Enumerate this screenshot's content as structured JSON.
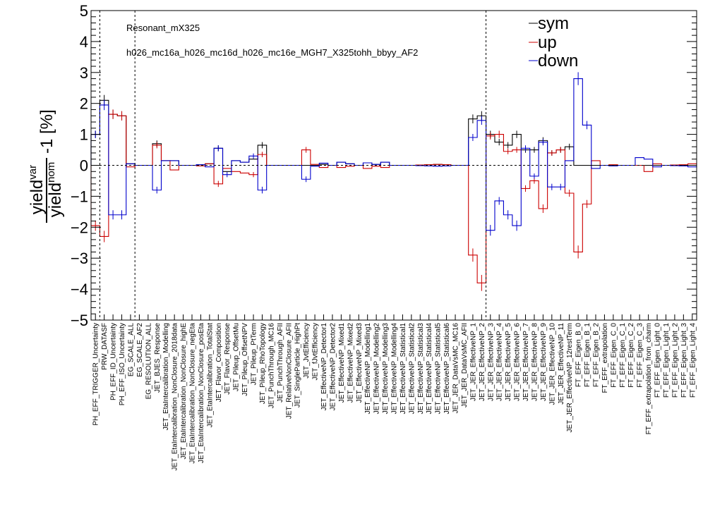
{
  "chart_data": {
    "type": "bar",
    "annotations": [
      "Resonant_mX325",
      "h026_mc16a_h026_mc16d_h026_mc16e_MGH7_X325tohh_bbyy_AF2"
    ],
    "ylabel_parts": {
      "num": "yield",
      "num_sup": "var",
      "den": "yield",
      "den_sup": "nom",
      "suffix": "-1 [%]"
    },
    "ylim": [
      -5,
      5
    ],
    "yticks": [
      "5",
      "4",
      "3",
      "2",
      "1",
      "0",
      "−1",
      "−2",
      "−3",
      "−4",
      "−5"
    ],
    "legend": {
      "position": "top-right",
      "entries": [
        {
          "label": "sym",
          "color": "#000000"
        },
        {
          "label": "up",
          "color": "#cc0000"
        },
        {
          "label": "down",
          "color": "#0000cc"
        }
      ]
    },
    "separators_after_index": [
      0,
      4,
      44
    ],
    "categories": [
      "PH_EFF_TRIGGER_Uncertainty",
      "PRW_DATASF",
      "PH_EFF_ID_Uncertainty",
      "PH_EFF_ISO_Uncertainty",
      "EG_SCALE_ALL",
      "EG_SCALE_AF2",
      "EG_RESOLUTION_ALL",
      "JET_BJES_Response",
      "JET_EtaIntercalibration_Modelling",
      "JET_EtaIntercalibration_NonClosure_2018data",
      "JET_EtaIntercalibration_NonClosure_highE",
      "JET_EtaIntercalibration_NonClosure_negEta",
      "JET_EtaIntercalibration_NonClosure_posEta",
      "JET_EtaIntercalibration_TotalStat",
      "JET_Flavor_Composition",
      "JET_Flavor_Response",
      "JET_Pileup_OffsetMu",
      "JET_Pileup_OffsetNPV",
      "JET_Pileup_PtTerm",
      "JET_Pileup_RhoTopology",
      "JET_PunchThrough_MC16",
      "JET_PunchThrough_AFII",
      "JET_RelativeNonClosure_AFII",
      "JET_SingleParticle_HighPt",
      "JET_JvtEfficiency",
      "JET_fJvtEfficiency",
      "JET_EffectiveNP_Detector1",
      "JET_EffectiveNP_Detector2",
      "JET_EffectiveNP_Mixed1",
      "JET_EffectiveNP_Mixed2",
      "JET_EffectiveNP_Mixed3",
      "JET_EffectiveNP_Modelling1",
      "JET_EffectiveNP_Modelling2",
      "JET_EffectiveNP_Modelling3",
      "JET_EffectiveNP_Modelling4",
      "JET_EffectiveNP_Statistical1",
      "JET_EffectiveNP_Statistical2",
      "JET_EffectiveNP_Statistical3",
      "JET_EffectiveNP_Statistical4",
      "JET_EffectiveNP_Statistical5",
      "JET_EffectiveNP_Statistical6",
      "JET_JER_DataVsMC_MC16",
      "JET_JER_DataVsMC_AFII",
      "JET_JER_EffectiveNP_1",
      "JET_JER_EffectiveNP_2",
      "JET_JER_EffectiveNP_3",
      "JET_JER_EffectiveNP_4",
      "JET_JER_EffectiveNP_5",
      "JET_JER_EffectiveNP_6",
      "JET_JER_EffectiveNP_7",
      "JET_JER_EffectiveNP_8",
      "JET_JER_EffectiveNP_9",
      "JET_JER_EffectiveNP_10",
      "JET_JER_EffectiveNP_11",
      "JET_JER_EffectiveNP_12restTerm",
      "FT_EFF_Eigen_B_0",
      "FT_EFF_Eigen_B_1",
      "FT_EFF_Eigen_B_2",
      "FT_EFF_extrapolation",
      "FT_EFF_Eigen_C_0",
      "FT_EFF_Eigen_C_1",
      "FT_EFF_Eigen_C_2",
      "FT_EFF_Eigen_C_3",
      "FT_EFF_extrapolation_from_charm",
      "FT_EFF_Eigen_Light_0",
      "FT_EFF_Eigen_Light_1",
      "FT_EFF_Eigen_Light_2",
      "FT_EFF_Eigen_Light_3",
      "FT_EFF_Eigen_Light_4"
    ],
    "series": [
      {
        "name": "sym",
        "color": "#000000",
        "values": [
          1.0,
          2.1,
          1.65,
          1.6,
          0.05,
          0,
          0,
          0.7,
          0.15,
          0.15,
          0,
          0,
          0.02,
          0.05,
          0.55,
          -0.2,
          0.15,
          0.1,
          0.2,
          0.65,
          0,
          0,
          0,
          0,
          0,
          0,
          0.03,
          0,
          0.1,
          0.05,
          0,
          0.08,
          0.03,
          0.1,
          0,
          0,
          0,
          0.01,
          0.02,
          0.03,
          0.02,
          0,
          0,
          1.5,
          1.6,
          1.0,
          0.75,
          0.65,
          1.0,
          0.5,
          0.5,
          0.8,
          0.4,
          0.5,
          0.6,
          0,
          0,
          0,
          0,
          0,
          0,
          0,
          0,
          0,
          0,
          0,
          0,
          0,
          0
        ]
      },
      {
        "name": "up",
        "color": "#cc0000",
        "values": [
          -1.95,
          -2.3,
          1.65,
          1.6,
          -0.05,
          0,
          0,
          0.65,
          0.15,
          -0.15,
          0,
          0,
          -0.02,
          0.05,
          -0.6,
          -0.1,
          -0.2,
          -0.25,
          -0.3,
          0.35,
          0,
          0,
          0,
          0,
          0.5,
          0.03,
          -0.07,
          0,
          -0.07,
          -0.03,
          0,
          -0.1,
          -0.03,
          -0.07,
          0,
          0,
          0,
          0.01,
          0.02,
          0.03,
          0.02,
          0,
          0,
          -2.9,
          -3.8,
          0.95,
          1.0,
          0.45,
          0.5,
          -0.75,
          -0.5,
          -1.4,
          0.4,
          0.5,
          -0.9,
          -2.8,
          -1.25,
          0.15,
          0,
          0.02,
          0,
          0,
          0,
          -0.2,
          0.05,
          0,
          0.01,
          0.02,
          0.05
        ]
      },
      {
        "name": "down",
        "color": "#0000cc",
        "values": [
          1.0,
          1.95,
          -1.6,
          -1.6,
          0.05,
          0,
          0,
          -0.8,
          0.15,
          0.15,
          0,
          0,
          0.02,
          -0.05,
          0.55,
          -0.3,
          0.15,
          0.1,
          0.3,
          -0.8,
          0,
          0,
          0,
          0,
          -0.45,
          -0.03,
          0.07,
          0,
          0.1,
          0.05,
          0,
          0.08,
          0.03,
          0.1,
          0,
          0,
          0,
          -0.01,
          -0.02,
          -0.03,
          -0.02,
          0,
          0,
          0.9,
          1.45,
          -2.1,
          -1.15,
          -1.6,
          -1.95,
          0.55,
          -0.35,
          0.75,
          -0.7,
          -0.7,
          0.15,
          2.8,
          1.3,
          -0.1,
          0,
          -0.02,
          0,
          0,
          0.25,
          0.2,
          -0.05,
          0,
          -0.01,
          -0.02,
          -0.05
        ]
      }
    ]
  }
}
